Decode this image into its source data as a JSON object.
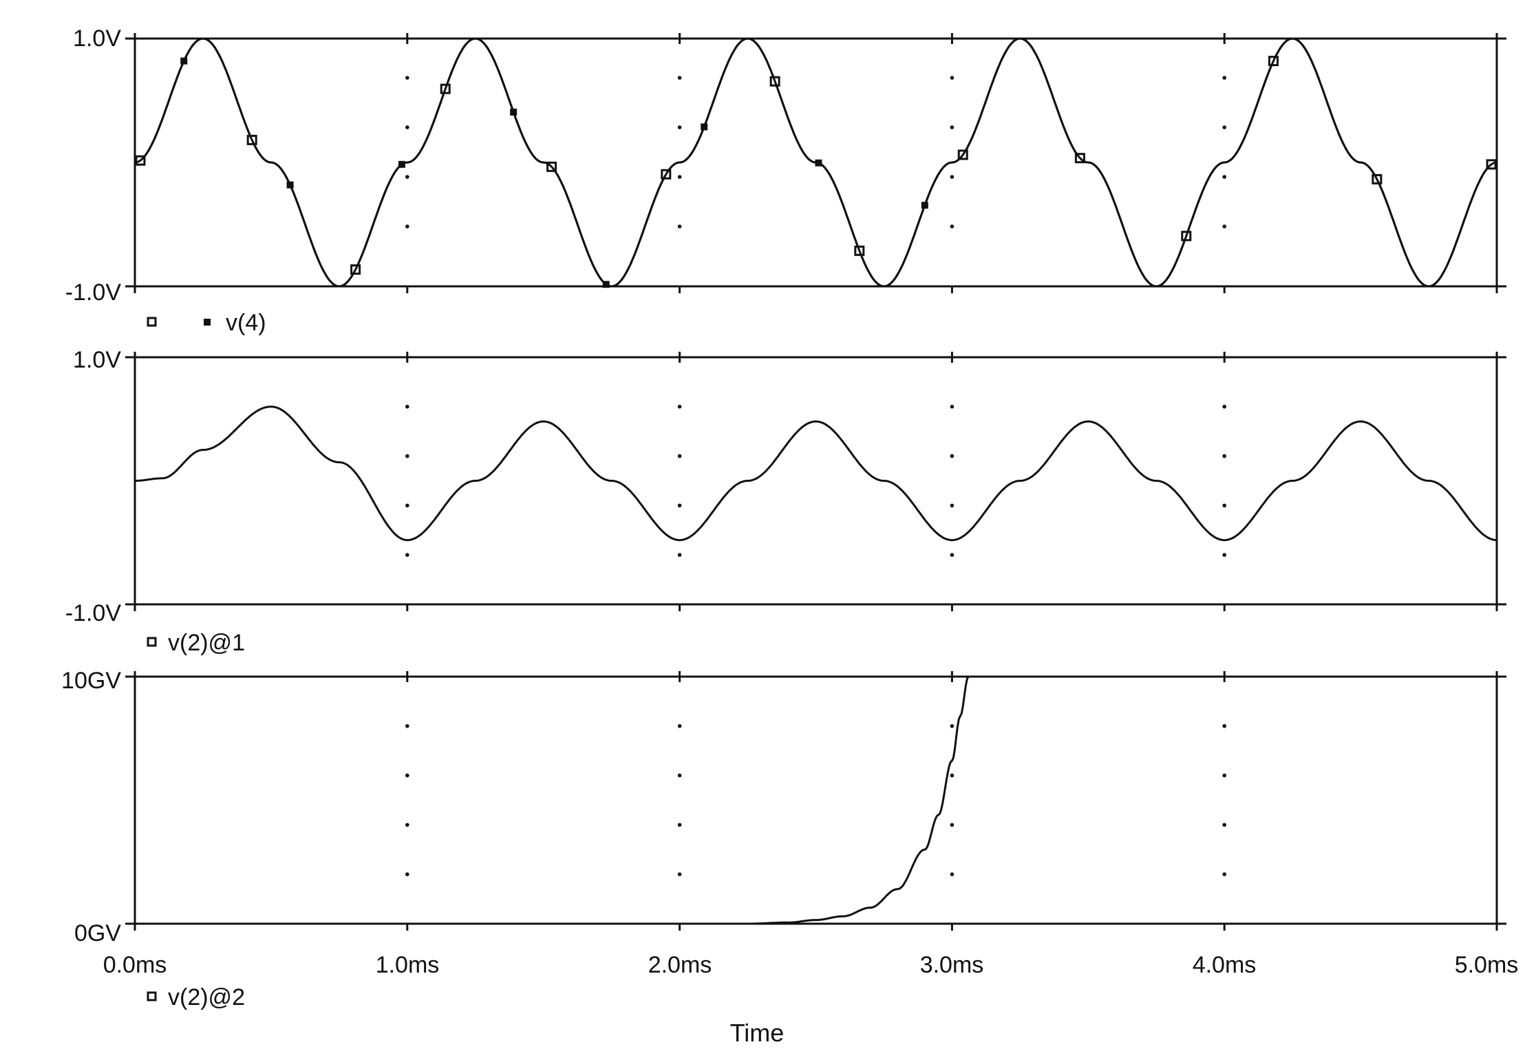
{
  "chart_data": [
    {
      "type": "line",
      "title": "",
      "xlabel": "",
      "x_range": [
        0,
        5
      ],
      "x_unit": "ms",
      "ylim": [
        -1.0,
        1.0
      ],
      "y_tick_labels": [
        "1.0V",
        "-1.0V"
      ],
      "grid": "dotted vertical lines at 1.0ms, 2.0ms, 3.0ms, 4.0ms",
      "legend": [
        {
          "marker": "open-square",
          "label": ""
        },
        {
          "marker": "filled-square",
          "label": "v(4)"
        }
      ],
      "series": [
        {
          "marker": "open-square",
          "description": "sine, amplitude 1.0, period 1.0ms",
          "points": [
            [
              0.0,
              0.0
            ],
            [
              0.25,
              1.0
            ],
            [
              0.5,
              0.0
            ],
            [
              0.75,
              -1.0
            ],
            [
              1.0,
              0.0
            ],
            [
              1.25,
              1.0
            ],
            [
              1.5,
              0.0
            ],
            [
              1.75,
              -1.0
            ],
            [
              2.0,
              0.0
            ],
            [
              2.25,
              1.0
            ],
            [
              2.5,
              0.0
            ],
            [
              2.75,
              -1.0
            ],
            [
              3.0,
              0.0
            ],
            [
              3.25,
              1.0
            ],
            [
              3.5,
              0.0
            ],
            [
              3.75,
              -1.0
            ],
            [
              4.0,
              0.0
            ],
            [
              4.25,
              1.0
            ],
            [
              4.5,
              0.0
            ],
            [
              4.75,
              -1.0
            ],
            [
              5.0,
              0.0
            ]
          ],
          "marker_x": [
            0.02,
            0.43,
            0.81,
            1.14,
            1.53,
            1.95,
            2.35,
            2.66,
            3.04,
            3.47,
            3.86,
            4.18,
            4.56,
            4.98
          ]
        },
        {
          "name": "v(4)",
          "marker": "filled-square",
          "description": "same waveform as the open-square trace",
          "points": [
            [
              0.0,
              0.0
            ],
            [
              0.25,
              1.0
            ],
            [
              0.5,
              0.0
            ],
            [
              0.75,
              -1.0
            ],
            [
              1.0,
              0.0
            ],
            [
              1.25,
              1.0
            ],
            [
              1.5,
              0.0
            ],
            [
              1.75,
              -1.0
            ],
            [
              2.0,
              0.0
            ],
            [
              2.25,
              1.0
            ],
            [
              2.5,
              0.0
            ],
            [
              2.75,
              -1.0
            ],
            [
              3.0,
              0.0
            ],
            [
              3.25,
              1.0
            ],
            [
              3.5,
              0.0
            ],
            [
              3.75,
              -1.0
            ],
            [
              4.0,
              0.0
            ],
            [
              4.25,
              1.0
            ],
            [
              4.5,
              0.0
            ],
            [
              4.75,
              -1.0
            ],
            [
              5.0,
              0.0
            ]
          ],
          "marker_x": [
            0.18,
            0.57,
            0.98,
            1.39,
            1.73,
            2.09,
            2.51,
            2.9
          ]
        }
      ]
    },
    {
      "type": "line",
      "title": "",
      "xlabel": "",
      "x_range": [
        0,
        5
      ],
      "x_unit": "ms",
      "ylim": [
        -1.0,
        1.0
      ],
      "y_tick_labels": [
        "1.0V",
        "-1.0V"
      ],
      "grid": "dotted vertical lines at 1.0ms, 2.0ms, 3.0ms, 4.0ms",
      "legend": [
        {
          "marker": "open-square",
          "label": "v(2)@1"
        }
      ],
      "series": [
        {
          "name": "v(2)@1",
          "description": "filtered sine starting at 0, settling to amplitude ~0.48, period 1.0ms",
          "points": [
            [
              0.0,
              0.0
            ],
            [
              0.1,
              0.02
            ],
            [
              0.25,
              0.25
            ],
            [
              0.5,
              0.6
            ],
            [
              0.75,
              0.15
            ],
            [
              1.0,
              -0.48
            ],
            [
              1.25,
              0.0
            ],
            [
              1.5,
              0.48
            ],
            [
              1.75,
              0.0
            ],
            [
              2.0,
              -0.48
            ],
            [
              2.25,
              0.0
            ],
            [
              2.5,
              0.48
            ],
            [
              2.75,
              0.0
            ],
            [
              3.0,
              -0.48
            ],
            [
              3.25,
              0.0
            ],
            [
              3.5,
              0.48
            ],
            [
              3.75,
              0.0
            ],
            [
              4.0,
              -0.48
            ],
            [
              4.25,
              0.0
            ],
            [
              4.5,
              0.48
            ],
            [
              4.75,
              0.0
            ],
            [
              5.0,
              -0.48
            ]
          ]
        }
      ]
    },
    {
      "type": "line",
      "title": "",
      "xlabel": "Time",
      "x_range": [
        0,
        5
      ],
      "x_unit": "ms",
      "x_tick_labels": [
        "0.0ms",
        "1.0ms",
        "2.0ms",
        "3.0ms",
        "4.0ms",
        "5.0ms"
      ],
      "ylim": [
        0,
        10
      ],
      "y_unit": "GV",
      "y_tick_labels": [
        "10GV",
        "0GV"
      ],
      "grid": "dotted vertical lines at 1.0ms, 2.0ms, 3.0ms, 4.0ms",
      "legend": [
        {
          "marker": "open-square",
          "label": "v(2)@2"
        }
      ],
      "series": [
        {
          "name": "v(2)@2",
          "description": "near zero until ~2.25ms, then exponential growth exceeding 10GV at ~3.05ms",
          "points": [
            [
              0.0,
              0.0
            ],
            [
              2.25,
              0.0
            ],
            [
              2.4,
              0.05
            ],
            [
              2.5,
              0.15
            ],
            [
              2.6,
              0.3
            ],
            [
              2.7,
              0.65
            ],
            [
              2.8,
              1.4
            ],
            [
              2.9,
              3.0
            ],
            [
              2.95,
              4.4
            ],
            [
              3.0,
              6.6
            ],
            [
              3.03,
              8.4
            ],
            [
              3.06,
              10.0
            ]
          ]
        }
      ]
    }
  ]
}
